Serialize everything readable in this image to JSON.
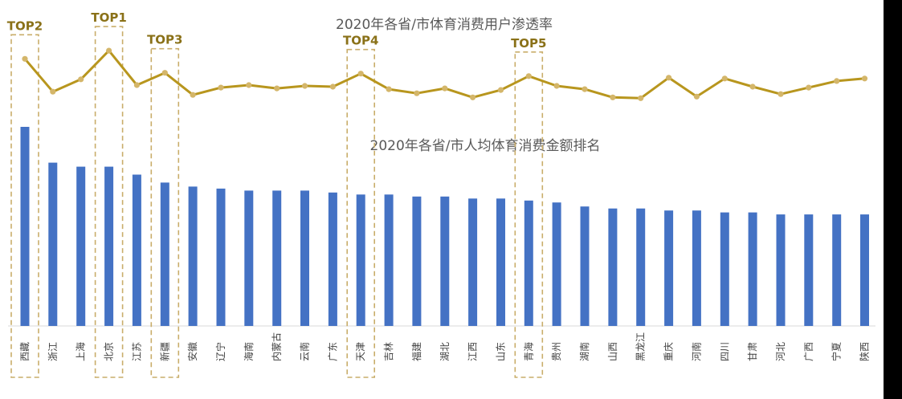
{
  "chart_data": [
    {
      "type": "line",
      "title": "2020年各省/市体育消费用户渗透率",
      "categories": [
        "西藏",
        "浙江",
        "上海",
        "北京",
        "江苏",
        "新疆",
        "安徽",
        "辽宁",
        "海南",
        "内蒙古",
        "云南",
        "广东",
        "天津",
        "吉林",
        "福建",
        "湖北",
        "江西",
        "山东",
        "青海",
        "贵州",
        "湖南",
        "山西",
        "黑龙江",
        "重庆",
        "河南",
        "四川",
        "甘肃",
        "河北",
        "广西",
        "宁夏",
        "陕西"
      ],
      "values": [
        80,
        40,
        55,
        90,
        48,
        63,
        36,
        45,
        48,
        44,
        47,
        46,
        62,
        43,
        38,
        44,
        33,
        42,
        59,
        47,
        43,
        33,
        32,
        57,
        34,
        56,
        46,
        37,
        45,
        53,
        56
      ],
      "ylim": [
        0,
        100
      ],
      "color": "#b8961e",
      "annotations": [
        {
          "label": "TOP1",
          "category": "北京"
        },
        {
          "label": "TOP2",
          "category": "西藏"
        },
        {
          "label": "TOP3",
          "category": "新疆"
        },
        {
          "label": "TOP4",
          "category": "天津"
        },
        {
          "label": "TOP5",
          "category": "青海"
        }
      ]
    },
    {
      "type": "bar",
      "title": "2020年各省/市人均体育消费金额排名",
      "categories": [
        "西藏",
        "浙江",
        "上海",
        "北京",
        "江苏",
        "新疆",
        "安徽",
        "辽宁",
        "海南",
        "内蒙古",
        "云南",
        "广东",
        "天津",
        "吉林",
        "福建",
        "湖北",
        "江西",
        "山东",
        "青海",
        "贵州",
        "湖南",
        "山西",
        "黑龙江",
        "重庆",
        "河南",
        "四川",
        "甘肃",
        "河北",
        "广西",
        "宁夏",
        "陕西"
      ],
      "values": [
        100,
        82,
        80,
        80,
        76,
        72,
        70,
        69,
        68,
        68,
        68,
        67,
        66,
        66,
        65,
        65,
        64,
        64,
        63,
        62,
        60,
        59,
        59,
        58,
        58,
        57,
        57,
        56,
        56,
        56,
        56
      ],
      "ylim": [
        0,
        100
      ],
      "color": "#4472c4"
    }
  ]
}
